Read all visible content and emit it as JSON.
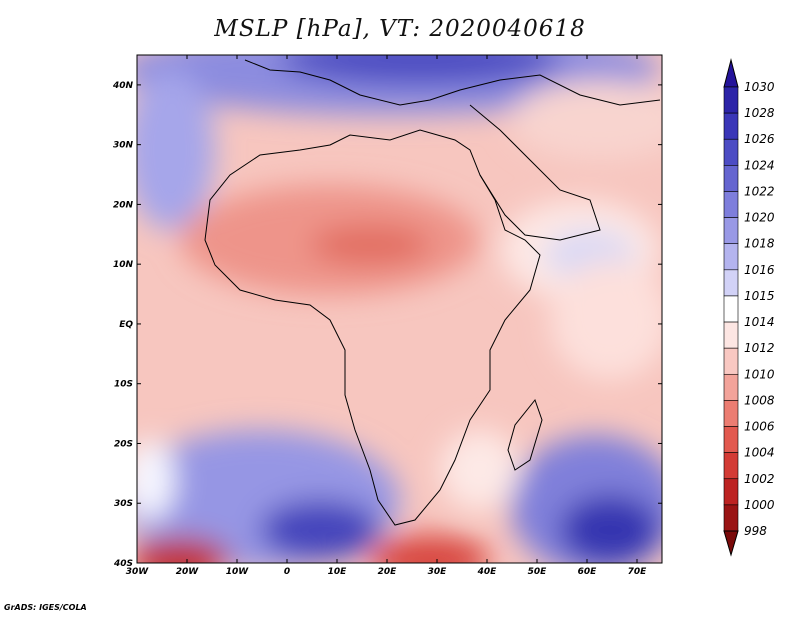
{
  "title": "MSLP [hPa], VT: 2020040618",
  "credit": "GrADS: IGES/COLA",
  "map": {
    "variable": "Mean sea level pressure",
    "units": "hPa",
    "valid_time": "2020040618",
    "lon_range": [
      -30,
      75
    ],
    "lat_range": [
      -40,
      45
    ],
    "lon_ticks": [
      "30W",
      "20W",
      "10W",
      "0",
      "10E",
      "20E",
      "30E",
      "40E",
      "50E",
      "60E",
      "70E"
    ],
    "lat_ticks": [
      "40N",
      "30N",
      "20N",
      "10N",
      "EQ",
      "10S",
      "20S",
      "30S",
      "40S"
    ]
  },
  "colorbar": {
    "levels": [
      "1030",
      "1028",
      "1026",
      "1024",
      "1022",
      "1020",
      "1018",
      "1016",
      "1015",
      "1014",
      "1012",
      "1010",
      "1008",
      "1006",
      "1004",
      "1002",
      "1000",
      "998"
    ],
    "colors": [
      "#24139a",
      "#2c24a8",
      "#3a36b8",
      "#4c4cc4",
      "#6565d0",
      "#7e7edc",
      "#9999e6",
      "#b4b4ef",
      "#d2d2f7",
      "#ffffff",
      "#fde6e3",
      "#f9c8c2",
      "#f3a39a",
      "#ec7d72",
      "#e2594f",
      "#d33b35",
      "#bd2322",
      "#9a1414",
      "#7a0a0a"
    ]
  }
}
